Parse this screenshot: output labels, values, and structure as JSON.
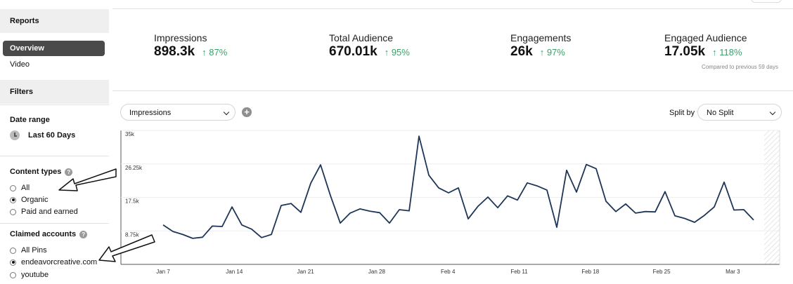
{
  "sidebar": {
    "reports_header": "Reports",
    "nav": [
      {
        "label": "Overview",
        "selected": true
      },
      {
        "label": "Video",
        "selected": false
      }
    ],
    "filters_header": "Filters",
    "date_range": {
      "label": "Date range",
      "value": "Last 60 Days"
    },
    "content_types": {
      "label": "Content types",
      "options": [
        {
          "label": "All",
          "checked": false
        },
        {
          "label": "Organic",
          "checked": true
        },
        {
          "label": "Paid and earned",
          "checked": false
        }
      ]
    },
    "claimed_accounts": {
      "label": "Claimed accounts",
      "options": [
        {
          "label": "All Pins",
          "checked": false
        },
        {
          "label": "endeavorcreative.com",
          "checked": true
        },
        {
          "label": "youtube",
          "checked": false
        }
      ]
    },
    "help_icon": "?"
  },
  "metrics": [
    {
      "label": "Impressions",
      "value": "898.3k",
      "change": "87%"
    },
    {
      "label": "Total Audience",
      "value": "670.01k",
      "change": "95%"
    },
    {
      "label": "Engagements",
      "value": "26k",
      "change": "97%"
    },
    {
      "label": "Engaged Audience",
      "value": "17.05k",
      "change": "118%"
    }
  ],
  "compared_note": "Compared to previous 59 days",
  "controls": {
    "metric_select": "Impressions",
    "add_icon": "+",
    "split_label": "Split by",
    "split_select": "No Split"
  },
  "colors": {
    "line": "#1d3557",
    "up": "#3aa16a",
    "selected_nav": "#4a4a4a"
  },
  "chart_data": {
    "type": "line",
    "y_ticks": [
      "35k",
      "26.25k",
      "17.5k",
      "8.75k"
    ],
    "ylim": [
      0,
      35000
    ],
    "x_ticks": [
      "Jan 7",
      "Jan 14",
      "Jan 21",
      "Jan 28",
      "Feb 4",
      "Feb 11",
      "Feb 18",
      "Feb 25",
      "Mar 3"
    ],
    "series": [
      {
        "values": [
          10300,
          8600,
          7800,
          6800,
          7100,
          10000,
          9900,
          15000,
          10300,
          9200,
          7000,
          7800,
          15400,
          15900,
          13600,
          21200,
          26000,
          18000,
          10800,
          13400,
          14500,
          13900,
          13500,
          10800,
          14300,
          14000,
          33500,
          23300,
          20000,
          18700,
          20000,
          11900,
          15200,
          17600,
          14800,
          17900,
          16800,
          21300,
          20500,
          19400,
          9700,
          24600,
          18900,
          26100,
          25000,
          16500,
          13800,
          15800,
          13400,
          13800,
          13700,
          19000,
          12700,
          12000,
          11000,
          12800,
          15000,
          21500,
          14200,
          14300,
          11600
        ]
      }
    ]
  }
}
